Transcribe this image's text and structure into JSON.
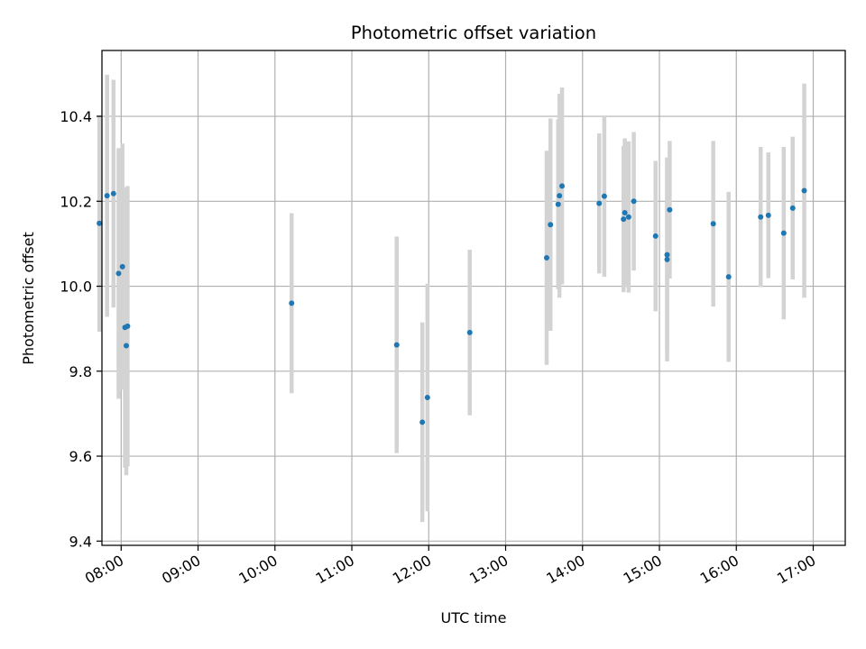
{
  "chart_data": {
    "type": "scatter",
    "title": "Photometric offset variation",
    "xlabel": "UTC time",
    "ylabel": "Photometric offset",
    "xlim": [
      "07:45",
      "17:25"
    ],
    "ylim": [
      9.39,
      10.555
    ],
    "x_ticks": [
      "08:00",
      "09:00",
      "10:00",
      "11:00",
      "12:00",
      "13:00",
      "14:00",
      "15:00",
      "16:00",
      "17:00"
    ],
    "y_ticks": [
      9.4,
      9.6,
      9.8,
      10.0,
      10.2,
      10.4
    ],
    "y_tick_labels": [
      "9.4",
      "9.6",
      "9.8",
      "10.0",
      "10.2",
      "10.4"
    ],
    "grid": true,
    "point_color": "#1f77b4",
    "errorbar_color": "#d3d3d3",
    "points": [
      {
        "x": "07:43",
        "y": 10.148,
        "yerr": 0.255
      },
      {
        "x": "07:49",
        "y": 10.213,
        "yerr": 0.285
      },
      {
        "x": "07:54",
        "y": 10.218,
        "yerr": 0.268
      },
      {
        "x": "07:58",
        "y": 10.03,
        "yerr": 0.295
      },
      {
        "x": "08:01",
        "y": 10.046,
        "yerr": 0.29
      },
      {
        "x": "08:03",
        "y": 9.903,
        "yerr": 0.33
      },
      {
        "x": "08:04",
        "y": 9.86,
        "yerr": 0.305
      },
      {
        "x": "08:05",
        "y": 9.906,
        "yerr": 0.33
      },
      {
        "x": "10:13",
        "y": 9.96,
        "yerr": 0.212
      },
      {
        "x": "11:35",
        "y": 9.862,
        "yerr": 0.255
      },
      {
        "x": "11:55",
        "y": 9.68,
        "yerr": 0.235
      },
      {
        "x": "11:59",
        "y": 9.738,
        "yerr": 0.268
      },
      {
        "x": "12:32",
        "y": 9.891,
        "yerr": 0.195
      },
      {
        "x": "13:32",
        "y": 10.067,
        "yerr": 0.252
      },
      {
        "x": "13:35",
        "y": 10.145,
        "yerr": 0.25
      },
      {
        "x": "13:41",
        "y": 10.193,
        "yerr": 0.2
      },
      {
        "x": "13:42",
        "y": 10.213,
        "yerr": 0.24
      },
      {
        "x": "13:44",
        "y": 10.236,
        "yerr": 0.232
      },
      {
        "x": "14:13",
        "y": 10.195,
        "yerr": 0.165
      },
      {
        "x": "14:17",
        "y": 10.212,
        "yerr": 0.19
      },
      {
        "x": "14:32",
        "y": 10.158,
        "yerr": 0.172
      },
      {
        "x": "14:33",
        "y": 10.173,
        "yerr": 0.175
      },
      {
        "x": "14:36",
        "y": 10.163,
        "yerr": 0.178
      },
      {
        "x": "14:40",
        "y": 10.2,
        "yerr": 0.163
      },
      {
        "x": "14:57",
        "y": 10.118,
        "yerr": 0.177
      },
      {
        "x": "15:06",
        "y": 10.074,
        "yerr": 0.227
      },
      {
        "x": "15:06",
        "y": 10.063,
        "yerr": 0.24
      },
      {
        "x": "15:08",
        "y": 10.18,
        "yerr": 0.162
      },
      {
        "x": "15:42",
        "y": 10.147,
        "yerr": 0.195
      },
      {
        "x": "15:54",
        "y": 10.022,
        "yerr": 0.2
      },
      {
        "x": "16:19",
        "y": 10.163,
        "yerr": 0.165
      },
      {
        "x": "16:25",
        "y": 10.167,
        "yerr": 0.148
      },
      {
        "x": "16:37",
        "y": 10.125,
        "yerr": 0.203
      },
      {
        "x": "16:44",
        "y": 10.184,
        "yerr": 0.168
      },
      {
        "x": "16:53",
        "y": 10.225,
        "yerr": 0.252
      }
    ]
  }
}
